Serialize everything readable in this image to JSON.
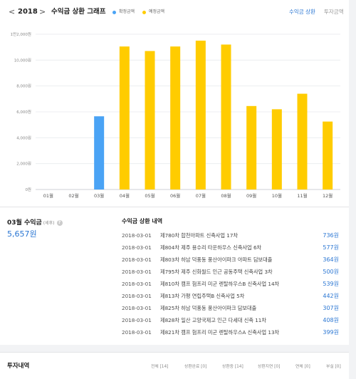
{
  "header": {
    "prev_arrow": "<",
    "year": "2018",
    "next_arrow": ">",
    "title": "수익금 상환 그래프",
    "legend": [
      {
        "label": "확정금액",
        "color": "#4aa3f5"
      },
      {
        "label": "예정금액",
        "color": "#ffcc00"
      }
    ],
    "tabs": [
      {
        "label": "수익금 상환",
        "active": true
      },
      {
        "label": "투자금액",
        "active": false
      }
    ]
  },
  "chart_data": {
    "type": "bar",
    "categories": [
      "01월",
      "02월",
      "03월",
      "04월",
      "05월",
      "06월",
      "07월",
      "08월",
      "09월",
      "10월",
      "11월",
      "12월"
    ],
    "values": [
      0,
      0,
      5657,
      11050,
      10700,
      11050,
      11500,
      11200,
      6450,
      6200,
      7400,
      5250
    ],
    "status": [
      "none",
      "none",
      "confirmed",
      "scheduled",
      "scheduled",
      "scheduled",
      "scheduled",
      "scheduled",
      "scheduled",
      "scheduled",
      "scheduled",
      "scheduled"
    ],
    "y_ticks": [
      "0원",
      "2,000원",
      "4,000원",
      "6,000원",
      "8,000원",
      "10,000원",
      "1만2,000원"
    ],
    "ylim": [
      0,
      12000
    ],
    "colors": {
      "confirmed": "#4aa3f5",
      "scheduled": "#ffcc00"
    },
    "grid": true
  },
  "summary": {
    "title": "03월 수익금",
    "subtitle": "(세후)",
    "info_icon": "?",
    "value": "5,657원"
  },
  "details": {
    "title": "수익금 상환 내역",
    "rows": [
      {
        "date": "2018-03-01",
        "desc": "제780차 합천아파트 신축사업 17차",
        "amount": "736원"
      },
      {
        "date": "2018-03-01",
        "desc": "제804차 제주 용수리 타운하우스 신축사업 6차",
        "amount": "577원"
      },
      {
        "date": "2018-03-01",
        "desc": "제803차 하남 덕풍동 풍산아이파크 아파트 담보대출",
        "amount": "364원"
      },
      {
        "date": "2018-03-01",
        "desc": "제795차 제주 신화월드 인근 공동주택 신축사업 3차",
        "amount": "500원"
      },
      {
        "date": "2018-03-01",
        "desc": "제810차 캠프 험프리 미군 렌탈하우스B 신축사업 14차",
        "amount": "539원"
      },
      {
        "date": "2018-03-01",
        "desc": "제813차 가평 연립주택B 신축사업 5차",
        "amount": "442원"
      },
      {
        "date": "2018-03-01",
        "desc": "제825차 하남 덕풍동 풍산아이파크 담보대출",
        "amount": "307원"
      },
      {
        "date": "2018-03-01",
        "desc": "제828차 일산 고양국제고 인근 다세대 신축 11차",
        "amount": "408원"
      },
      {
        "date": "2018-03-01",
        "desc": "제821차 캠프 험프리 미군 렌탈하우스A 신축사업 13차",
        "amount": "399원"
      }
    ]
  },
  "investment": {
    "title": "투자내역",
    "tabs": [
      "전체 [14]",
      "상환완료 [0]",
      "상환중 [14]",
      "상환지연 [0]",
      "연체 [0]",
      "부실 [0]"
    ]
  }
}
